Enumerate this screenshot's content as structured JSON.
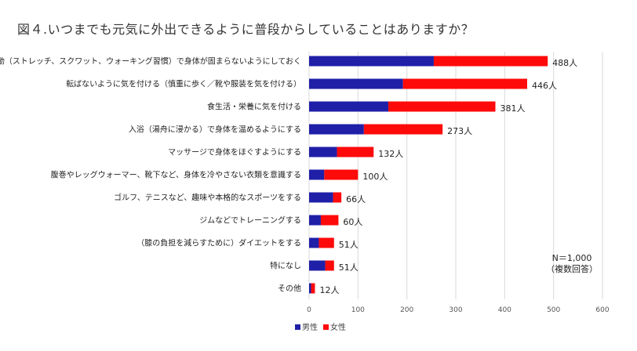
{
  "chart_data": {
    "type": "bar",
    "orientation": "horizontal",
    "stacked": true,
    "title": "図４.いつまでも元気に外出できるように普段からしていることはありますか？",
    "categories": [
      "軽い運動（ストレッチ、スクワット、ウォーキング習慣）で身体が固まらないようにしておく",
      "転ばないように気を付ける（慎重に歩く／靴や服装を気を付ける）",
      "食生活・栄養に気を付ける",
      "入浴（湯舟に浸かる）で身体を温めるようにする",
      "マッサージで身体をほぐすようにする",
      "腹巻やレッグウォーマー、靴下など、身体を冷やさない衣類を意識する",
      "ゴルフ、テニスなど、趣味や本格的なスポーツをする",
      "ジムなどでトレーニングする",
      "（膝の負担を減らすために）ダイエットをする",
      "特になし",
      "その他"
    ],
    "series": [
      {
        "name": "男性",
        "color": "#1f1fa8",
        "values": [
          255,
          192,
          162,
          112,
          57,
          31,
          49,
          24,
          20,
          33,
          4
        ]
      },
      {
        "name": "女性",
        "color": "#ff0a0a",
        "values": [
          233,
          254,
          219,
          161,
          75,
          69,
          17,
          36,
          31,
          18,
          8
        ]
      }
    ],
    "totals": [
      "488人",
      "446人",
      "381人",
      "273人",
      "132人",
      "100人",
      "66人",
      "60人",
      "51人",
      "51人",
      "12人"
    ],
    "xlim": [
      0,
      600
    ],
    "xticks": [
      0,
      100,
      200,
      300,
      400,
      500,
      600
    ],
    "grid": true,
    "legend_position": "bottom",
    "annotation": {
      "line1": "N＝1,000",
      "line2": "（複数回答）"
    }
  }
}
